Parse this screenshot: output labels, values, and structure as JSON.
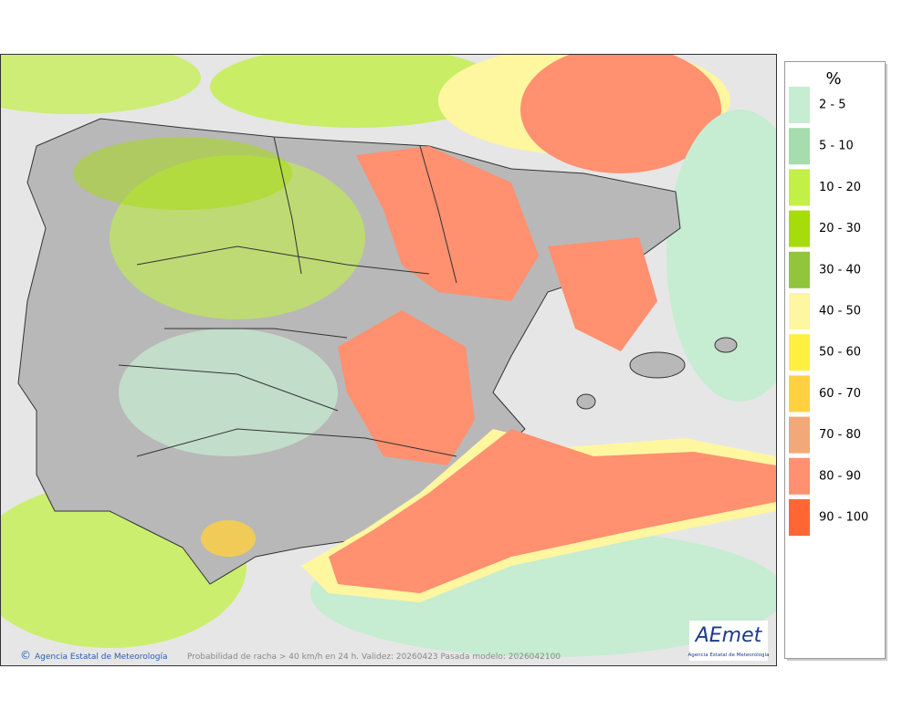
{
  "legend": {
    "title": "%",
    "items": [
      {
        "label": "2 - 5",
        "color": "#c6ecd2"
      },
      {
        "label": "5 - 10",
        "color": "#a6dcae"
      },
      {
        "label": "10 - 20",
        "color": "#c2f046"
      },
      {
        "label": "20 - 30",
        "color": "#a6dc0a"
      },
      {
        "label": "30 - 40",
        "color": "#92c43c"
      },
      {
        "label": "40 - 50",
        "color": "#fff6a0"
      },
      {
        "label": "50 - 60",
        "color": "#fff040"
      },
      {
        "label": "60 - 70",
        "color": "#ffd040"
      },
      {
        "label": "70 - 80",
        "color": "#f2a878"
      },
      {
        "label": "80 - 90",
        "color": "#ff9070"
      },
      {
        "label": "90 - 100",
        "color": "#ff6634"
      }
    ]
  },
  "footer": {
    "agency": "Agencia Estatal de Meteorología",
    "caption": "Probabilidad de racha > 40 km/h en 24 h. Validez: 20260423 Pasada modelo: 2026042100"
  },
  "logo": {
    "name": "AEmet",
    "subtitle": "Agencia Estatal de Meteorología"
  }
}
